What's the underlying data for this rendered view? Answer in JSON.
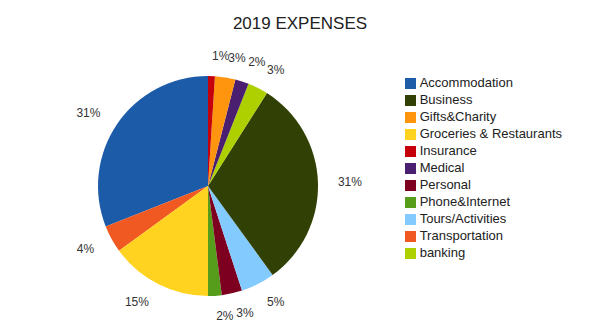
{
  "chart_data": {
    "type": "pie",
    "title": "2019 EXPENSES",
    "categories": [
      "Accommodation",
      "Transportation",
      "Groceries & Restaurants",
      "Phone&Internet",
      "Personal",
      "Tours/Activities",
      "Business",
      "banking",
      "Medical",
      "Gifts&Charity",
      "Insurance"
    ],
    "values": [
      31,
      4,
      15,
      2,
      3,
      5,
      31,
      3,
      2,
      3,
      1
    ],
    "value_labels": [
      "31%",
      "4%",
      "15%",
      "2%",
      "3%",
      "5%",
      "31%",
      "3%",
      "2%",
      "3%",
      "1%"
    ],
    "colors": [
      "#1c5ba8",
      "#f05a22",
      "#ffd320",
      "#579d1c",
      "#7e0021",
      "#83caff",
      "#314004",
      "#aecf00",
      "#4b1f6f",
      "#ff950e",
      "#c5000b"
    ],
    "data_labels": true,
    "legend": "right"
  }
}
